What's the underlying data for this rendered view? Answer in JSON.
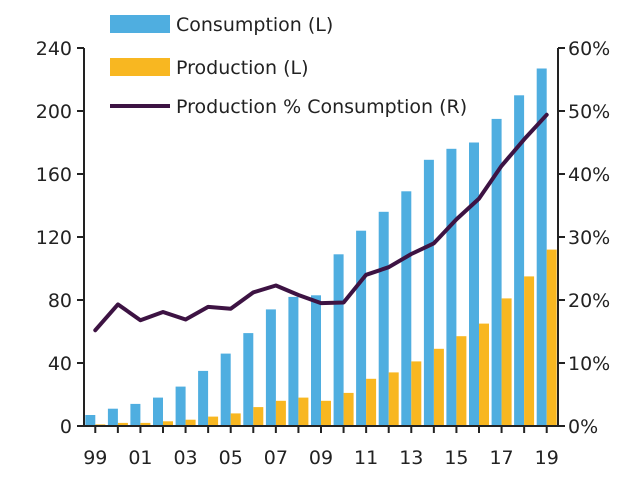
{
  "chart_data": {
    "type": "bar",
    "categories": [
      "99",
      "00",
      "01",
      "02",
      "03",
      "04",
      "05",
      "06",
      "07",
      "08",
      "09",
      "10",
      "11",
      "12",
      "13",
      "14",
      "15",
      "16",
      "17",
      "18",
      "19"
    ],
    "x_tick_labels": [
      "99",
      "01",
      "03",
      "05",
      "07",
      "09",
      "11",
      "13",
      "15",
      "17",
      "19"
    ],
    "series": [
      {
        "name": "Consumption (L)",
        "kind": "bar",
        "axis": "left",
        "color": "#4FAEE0",
        "values": [
          7,
          11,
          14,
          18,
          25,
          35,
          46,
          59,
          74,
          82,
          83,
          109,
          124,
          136,
          149,
          169,
          176,
          180,
          195,
          210,
          227
        ]
      },
      {
        "name": "Production (L)",
        "kind": "bar",
        "axis": "left",
        "color": "#F8B721",
        "values": [
          1,
          2,
          2,
          3,
          4,
          6,
          8,
          12,
          16,
          18,
          16,
          21,
          30,
          34,
          41,
          49,
          57,
          65,
          81,
          95,
          112
        ]
      },
      {
        "name": "Production % Consumption (R)",
        "kind": "line",
        "axis": "right",
        "color": "#3D1343",
        "values": [
          15.2,
          19.3,
          16.8,
          18.1,
          16.9,
          18.9,
          18.6,
          21.2,
          22.3,
          20.8,
          19.5,
          19.6,
          24.0,
          25.2,
          27.3,
          29.0,
          32.8,
          36.1,
          41.3,
          45.5,
          49.4
        ]
      }
    ],
    "y_left": {
      "ylim": [
        0,
        240
      ],
      "ticks": [
        0,
        40,
        80,
        120,
        160,
        200,
        240
      ],
      "tick_labels": [
        "0",
        "40",
        "80",
        "120",
        "160",
        "200",
        "240"
      ]
    },
    "y_right": {
      "ylim": [
        0,
        60
      ],
      "ticks": [
        0,
        10,
        20,
        30,
        40,
        50,
        60
      ],
      "tick_labels": [
        "0%",
        "10%",
        "20%",
        "30%",
        "40%",
        "50%",
        "60%"
      ]
    },
    "grid": false,
    "legend_placement": "top-left"
  }
}
